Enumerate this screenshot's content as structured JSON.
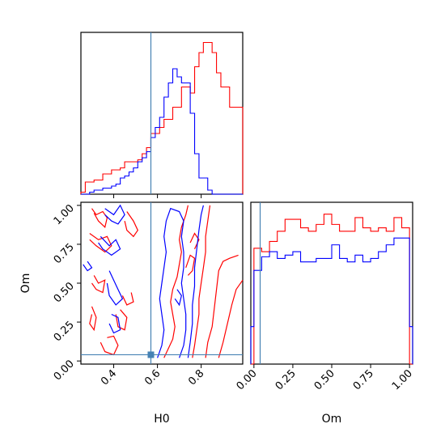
{
  "chart_data": [
    {
      "panel": "H0-marginal",
      "type": "histogram",
      "xlim": [
        0.25,
        0.99
      ],
      "truth_line": 0.57,
      "series": [
        {
          "color": "#ff0000",
          "bins_x": [
            0.25,
            0.27,
            0.29,
            0.31,
            0.33,
            0.35,
            0.37,
            0.39,
            0.41,
            0.43,
            0.45,
            0.47,
            0.49,
            0.51,
            0.53,
            0.55,
            0.57,
            0.59,
            0.61,
            0.63,
            0.65,
            0.67,
            0.69,
            0.71,
            0.73,
            0.75,
            0.77,
            0.79,
            0.81,
            0.83,
            0.85,
            0.87,
            0.89,
            0.91,
            0.93,
            0.95,
            0.97,
            0.99
          ],
          "counts": [
            0.01,
            0.06,
            0.06,
            0.07,
            0.07,
            0.1,
            0.1,
            0.12,
            0.12,
            0.13,
            0.16,
            0.16,
            0.16,
            0.17,
            0.2,
            0.23,
            0.3,
            0.3,
            0.33,
            0.37,
            0.37,
            0.43,
            0.43,
            0.53,
            0.53,
            0.5,
            0.63,
            0.7,
            0.75,
            0.75,
            0.7,
            0.6,
            0.53,
            0.53,
            0.43,
            0.43,
            0.43
          ]
        },
        {
          "color": "#0000ff",
          "bins_x": [
            0.25,
            0.27,
            0.29,
            0.31,
            0.33,
            0.35,
            0.37,
            0.39,
            0.41,
            0.43,
            0.45,
            0.47,
            0.49,
            0.51,
            0.53,
            0.55,
            0.57,
            0.59,
            0.61,
            0.63,
            0.65,
            0.67,
            0.69,
            0.71,
            0.73,
            0.75,
            0.77,
            0.79,
            0.81,
            0.83,
            0.85,
            0.87,
            0.89,
            0.91,
            0.93,
            0.95,
            0.97,
            0.99
          ],
          "counts": [
            0.0,
            0.0,
            0.01,
            0.02,
            0.02,
            0.03,
            0.03,
            0.04,
            0.05,
            0.08,
            0.09,
            0.11,
            0.13,
            0.16,
            0.18,
            0.21,
            0.28,
            0.33,
            0.38,
            0.48,
            0.55,
            0.62,
            0.58,
            0.55,
            0.55,
            0.4,
            0.2,
            0.08,
            0.08,
            0.02,
            0.0,
            0.0,
            0.0,
            0.0,
            0.0,
            0.0,
            0.0
          ]
        }
      ]
    },
    {
      "panel": "H0-Om-joint",
      "type": "contour",
      "xlabel": "H0",
      "ylabel": "Om",
      "xlim": [
        0.25,
        0.99
      ],
      "ylim": [
        -0.02,
        1.02
      ],
      "xticks": [
        "0.4",
        "0.6",
        "0.8"
      ],
      "yticks": [
        "0.00",
        "0.25",
        "0.50",
        "0.75",
        "1.00"
      ],
      "truth_point": {
        "x": 0.57,
        "y": 0.04
      },
      "contours": [
        {
          "color": "#ff0000",
          "points": [
            [
              0.3,
              0.98
            ],
            [
              0.32,
              0.94
            ],
            [
              0.35,
              0.96
            ],
            [
              0.37,
              0.92
            ],
            [
              0.36,
              0.86
            ],
            [
              0.33,
              0.9
            ],
            [
              0.31,
              0.95
            ]
          ]
        },
        {
          "color": "#ff0000",
          "points": [
            [
              0.29,
              0.82
            ],
            [
              0.33,
              0.78
            ],
            [
              0.37,
              0.8
            ],
            [
              0.39,
              0.74
            ],
            [
              0.36,
              0.7
            ],
            [
              0.32,
              0.74
            ],
            [
              0.29,
              0.78
            ]
          ]
        },
        {
          "color": "#ff0000",
          "points": [
            [
              0.31,
              0.55
            ],
            [
              0.33,
              0.5
            ],
            [
              0.36,
              0.52
            ],
            [
              0.35,
              0.44
            ],
            [
              0.32,
              0.46
            ],
            [
              0.3,
              0.5
            ]
          ]
        },
        {
          "color": "#ff0000",
          "points": [
            [
              0.3,
              0.35
            ],
            [
              0.32,
              0.28
            ],
            [
              0.31,
              0.2
            ],
            [
              0.29,
              0.24
            ],
            [
              0.3,
              0.3
            ]
          ]
        },
        {
          "color": "#ff0000",
          "points": [
            [
              0.34,
              0.12
            ],
            [
              0.36,
              0.06
            ],
            [
              0.4,
              0.04
            ],
            [
              0.42,
              0.1
            ],
            [
              0.4,
              0.16
            ],
            [
              0.37,
              0.15
            ]
          ]
        },
        {
          "color": "#ff0000",
          "points": [
            [
              0.41,
              0.3
            ],
            [
              0.42,
              0.22
            ],
            [
              0.45,
              0.2
            ],
            [
              0.46,
              0.28
            ],
            [
              0.43,
              0.33
            ]
          ]
        },
        {
          "color": "#ff0000",
          "points": [
            [
              0.44,
              0.42
            ],
            [
              0.46,
              0.36
            ],
            [
              0.49,
              0.38
            ],
            [
              0.48,
              0.44
            ]
          ]
        },
        {
          "color": "#ff0000",
          "points": [
            [
              0.46,
              0.96
            ],
            [
              0.49,
              0.9
            ],
            [
              0.51,
              0.84
            ],
            [
              0.49,
              0.8
            ],
            [
              0.46,
              0.84
            ],
            [
              0.45,
              0.9
            ]
          ]
        },
        {
          "color": "#ff0000",
          "points": [
            [
              0.63,
              0.02
            ],
            [
              0.65,
              0.08
            ],
            [
              0.67,
              0.14
            ],
            [
              0.68,
              0.22
            ],
            [
              0.67,
              0.3
            ],
            [
              0.66,
              0.38
            ],
            [
              0.67,
              0.46
            ],
            [
              0.69,
              0.54
            ],
            [
              0.7,
              0.62
            ],
            [
              0.71,
              0.7
            ],
            [
              0.7,
              0.78
            ],
            [
              0.71,
              0.86
            ],
            [
              0.73,
              0.94
            ],
            [
              0.74,
              1.0
            ]
          ]
        },
        {
          "color": "#ff0000",
          "points": [
            [
              0.76,
              0.02
            ],
            [
              0.77,
              0.1
            ],
            [
              0.78,
              0.2
            ],
            [
              0.79,
              0.3
            ],
            [
              0.79,
              0.4
            ],
            [
              0.8,
              0.5
            ],
            [
              0.81,
              0.6
            ],
            [
              0.82,
              0.7
            ],
            [
              0.82,
              0.8
            ],
            [
              0.83,
              0.9
            ],
            [
              0.84,
              1.0
            ]
          ]
        },
        {
          "color": "#ff0000",
          "points": [
            [
              0.82,
              0.02
            ],
            [
              0.83,
              0.12
            ],
            [
              0.85,
              0.22
            ],
            [
              0.86,
              0.34
            ],
            [
              0.87,
              0.46
            ],
            [
              0.88,
              0.58
            ],
            [
              0.9,
              0.64
            ],
            [
              0.93,
              0.66
            ],
            [
              0.97,
              0.68
            ]
          ]
        },
        {
          "color": "#ff0000",
          "points": [
            [
              0.88,
              0.02
            ],
            [
              0.9,
              0.12
            ],
            [
              0.92,
              0.24
            ],
            [
              0.94,
              0.36
            ],
            [
              0.96,
              0.46
            ],
            [
              0.99,
              0.52
            ]
          ]
        },
        {
          "color": "#ff0000",
          "points": [
            [
              0.73,
              0.6
            ],
            [
              0.75,
              0.68
            ],
            [
              0.77,
              0.66
            ],
            [
              0.76,
              0.58
            ],
            [
              0.74,
              0.55
            ]
          ]
        },
        {
          "color": "#ff0000",
          "points": [
            [
              0.75,
              0.76
            ],
            [
              0.77,
              0.82
            ],
            [
              0.79,
              0.78
            ],
            [
              0.77,
              0.72
            ]
          ]
        },
        {
          "color": "#0000ff",
          "points": [
            [
              0.36,
              0.98
            ],
            [
              0.4,
              0.94
            ],
            [
              0.43,
              1.0
            ],
            [
              0.45,
              0.94
            ],
            [
              0.42,
              0.88
            ],
            [
              0.39,
              0.9
            ],
            [
              0.36,
              0.94
            ]
          ]
        },
        {
          "color": "#0000ff",
          "points": [
            [
              0.34,
              0.8
            ],
            [
              0.38,
              0.74
            ],
            [
              0.41,
              0.78
            ],
            [
              0.43,
              0.72
            ],
            [
              0.39,
              0.68
            ],
            [
              0.35,
              0.72
            ],
            [
              0.33,
              0.76
            ]
          ]
        },
        {
          "color": "#0000ff",
          "points": [
            [
              0.38,
              0.58
            ],
            [
              0.4,
              0.52
            ],
            [
              0.42,
              0.46
            ],
            [
              0.44,
              0.4
            ],
            [
              0.41,
              0.36
            ],
            [
              0.38,
              0.42
            ],
            [
              0.37,
              0.5
            ]
          ]
        },
        {
          "color": "#0000ff",
          "points": [
            [
              0.38,
              0.24
            ],
            [
              0.4,
              0.18
            ],
            [
              0.43,
              0.2
            ],
            [
              0.42,
              0.28
            ],
            [
              0.39,
              0.3
            ]
          ]
        },
        {
          "color": "#0000ff",
          "points": [
            [
              0.26,
              0.62
            ],
            [
              0.28,
              0.58
            ],
            [
              0.3,
              0.6
            ],
            [
              0.28,
              0.64
            ]
          ]
        },
        {
          "color": "#0000ff",
          "points": [
            [
              0.6,
              0.02
            ],
            [
              0.62,
              0.1
            ],
            [
              0.63,
              0.2
            ],
            [
              0.62,
              0.3
            ],
            [
              0.61,
              0.4
            ],
            [
              0.62,
              0.5
            ],
            [
              0.63,
              0.6
            ],
            [
              0.64,
              0.7
            ],
            [
              0.63,
              0.8
            ],
            [
              0.64,
              0.9
            ],
            [
              0.66,
              0.98
            ],
            [
              0.7,
              0.96
            ],
            [
              0.72,
              0.9
            ],
            [
              0.71,
              0.8
            ],
            [
              0.72,
              0.7
            ],
            [
              0.72,
              0.6
            ],
            [
              0.71,
              0.5
            ],
            [
              0.72,
              0.4
            ],
            [
              0.73,
              0.3
            ],
            [
              0.73,
              0.2
            ],
            [
              0.72,
              0.1
            ],
            [
              0.7,
              0.02
            ]
          ]
        },
        {
          "color": "#0000ff",
          "points": [
            [
              0.74,
              0.02
            ],
            [
              0.75,
              0.12
            ],
            [
              0.76,
              0.24
            ],
            [
              0.76,
              0.36
            ],
            [
              0.77,
              0.48
            ],
            [
              0.77,
              0.6
            ],
            [
              0.78,
              0.72
            ],
            [
              0.79,
              0.84
            ],
            [
              0.8,
              0.94
            ],
            [
              0.81,
              1.0
            ]
          ]
        },
        {
          "color": "#0000ff",
          "points": [
            [
              0.68,
              0.4
            ],
            [
              0.7,
              0.36
            ],
            [
              0.71,
              0.42
            ],
            [
              0.69,
              0.46
            ]
          ]
        }
      ]
    },
    {
      "panel": "Om-marginal",
      "type": "histogram",
      "xlabel": "Om",
      "xlim": [
        -0.02,
        1.02
      ],
      "xticks": [
        "0.00",
        "0.25",
        "0.50",
        "0.75",
        "1.00"
      ],
      "truth_line": 0.04,
      "series": [
        {
          "color": "#ff0000",
          "bins_x": [
            -0.02,
            0.0,
            0.05,
            0.1,
            0.15,
            0.2,
            0.25,
            0.3,
            0.35,
            0.4,
            0.45,
            0.5,
            0.55,
            0.6,
            0.65,
            0.7,
            0.75,
            0.8,
            0.85,
            0.9,
            0.95,
            1.0,
            1.02
          ],
          "counts": [
            0.0,
            0.68,
            0.66,
            0.72,
            0.78,
            0.85,
            0.85,
            0.8,
            0.78,
            0.82,
            0.88,
            0.82,
            0.78,
            0.78,
            0.86,
            0.8,
            0.78,
            0.8,
            0.78,
            0.86,
            0.8,
            0.0
          ]
        },
        {
          "color": "#0000ff",
          "bins_x": [
            -0.02,
            0.0,
            0.05,
            0.1,
            0.15,
            0.2,
            0.25,
            0.3,
            0.35,
            0.4,
            0.45,
            0.5,
            0.55,
            0.6,
            0.65,
            0.7,
            0.75,
            0.8,
            0.85,
            0.9,
            0.95,
            1.0,
            1.02
          ],
          "counts": [
            0.22,
            0.55,
            0.63,
            0.66,
            0.62,
            0.64,
            0.66,
            0.6,
            0.6,
            0.62,
            0.62,
            0.7,
            0.62,
            0.6,
            0.64,
            0.6,
            0.62,
            0.66,
            0.7,
            0.74,
            0.74,
            0.22
          ]
        }
      ]
    }
  ]
}
